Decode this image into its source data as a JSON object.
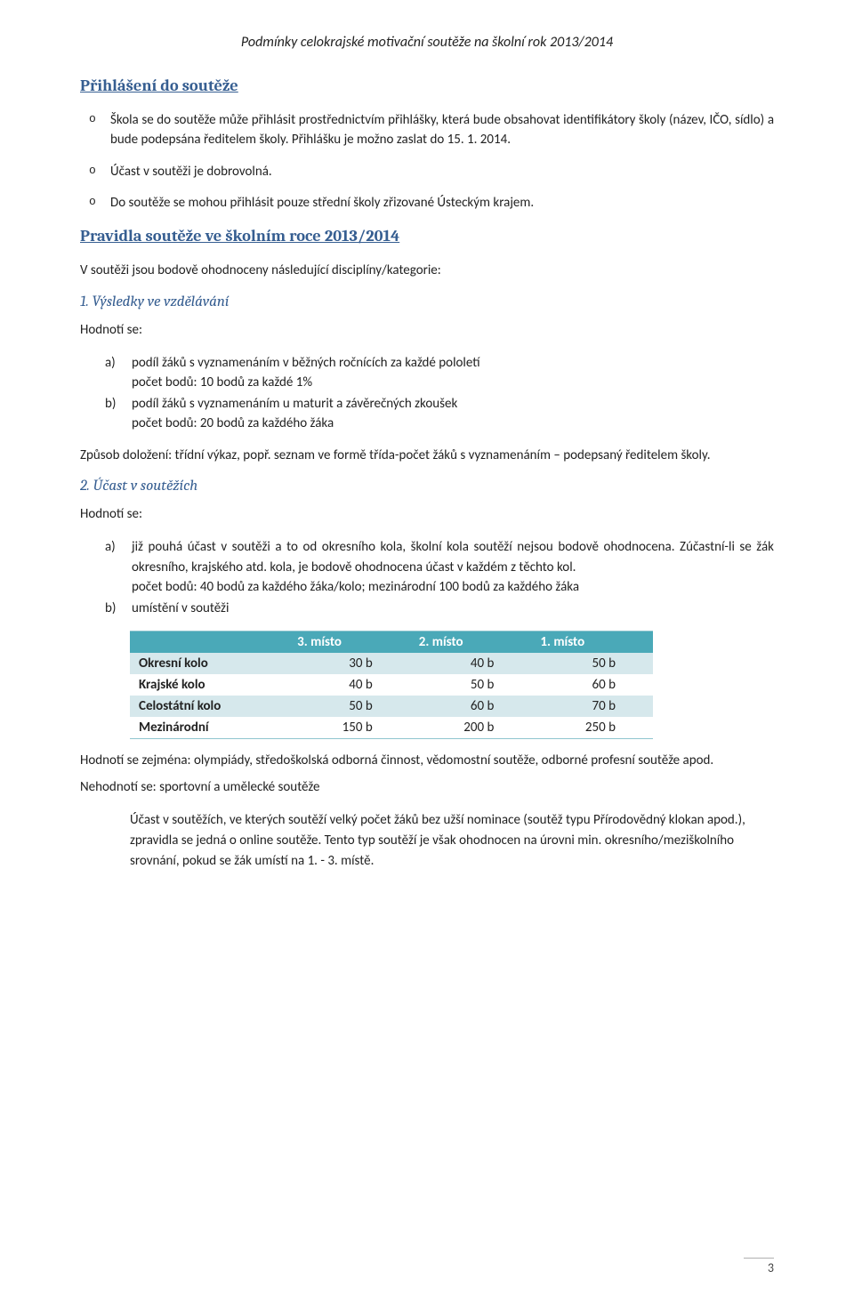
{
  "header_title": "Podmínky celokrajské motivační soutěže na školní rok 2013/2014",
  "section1": {
    "title": "Přihlášení do soutěže",
    "items": [
      "Škola se do soutěže může přihlásit prostřednictvím přihlášky, která bude obsahovat identifikátory školy (název, IČO, sídlo) a bude podepsána ředitelem školy. Přihlášku je možno zaslat do 15. 1. 2014.",
      "Účast v soutěži je dobrovolná.",
      "Do soutěže se mohou přihlásit pouze střední školy zřizované Ústeckým krajem."
    ]
  },
  "section2": {
    "title": "Pravidla soutěže ve školním roce 2013/2014",
    "intro": "V soutěži jsou bodově ohodnoceny následující disciplíny/kategorie:"
  },
  "disc1": {
    "heading": "1.  Výsledky ve vzdělávání",
    "hodnotise": "Hodnotí se:",
    "items": [
      {
        "marker": "a)",
        "line1": "podíl žáků s vyznamenáním v běžných ročnících za každé pololetí",
        "line2": "počet bodů: 10 bodů za každé 1%"
      },
      {
        "marker": "b)",
        "line1": "podíl žáků s vyznamenáním u maturit a závěrečných zkoušek",
        "line2": "počet bodů: 20 bodů za každého žáka"
      }
    ],
    "footer": "Způsob doložení: třídní výkaz, popř. seznam ve formě třída-počet žáků s vyznamenáním – podepsaný ředitelem školy."
  },
  "disc2": {
    "heading": "2.  Účast v soutěžích",
    "hodnotise": "Hodnotí se:",
    "items": [
      {
        "marker": "a)",
        "text": "již pouhá účast v soutěži a to od okresního kola, školní kola soutěží nejsou bodově ohodnocena. Zúčastní-li se žák okresního, krajského atd. kola, je bodově ohodnocena účast v každém z těchto kol.",
        "line2": "počet bodů: 40 bodů za každého žáka/kolo; mezinárodní 100 bodů za každého žáka"
      },
      {
        "marker": "b)",
        "text": "umístění v soutěži"
      }
    ]
  },
  "table": {
    "header_bg": "#4aa9b8",
    "row_alt_bg": "#d6e8ec",
    "row_bg": "#ffffff",
    "border_color": "#8fc6cf",
    "columns": [
      "",
      "3.   místo",
      "2.   místo",
      "1.   místo"
    ],
    "rows": [
      {
        "label": "Okresní kolo",
        "c3": "30 b",
        "c2": "40 b",
        "c1": "50 b"
      },
      {
        "label": "Krajské kolo",
        "c3": "40 b",
        "c2": "50 b",
        "c1": "60 b"
      },
      {
        "label": "Celostátní kolo",
        "c3": "50 b",
        "c2": "60 b",
        "c1": "70 b"
      },
      {
        "label": "Mezinárodní",
        "c3": "150 b",
        "c2": "200 b",
        "c1": "250 b"
      }
    ]
  },
  "after_table": {
    "p1": "Hodnotí se zejména: olympiády, středoškolská odborná činnost, vědomostní soutěže, odborné profesní soutěže apod.",
    "p2": "Nehodnotí se: sportovní a umělecké soutěže",
    "p3": "Účast v soutěžích, ve kterých soutěží velký počet žáků bez užší nominace (soutěž typu Přírodovědný klokan apod.), zpravidla se jedná o online soutěže. Tento typ soutěží je však ohodnocen na úrovni min. okresního/meziškolního srovnání, pokud se žák umístí na 1. - 3. místě."
  },
  "page_number": "3"
}
